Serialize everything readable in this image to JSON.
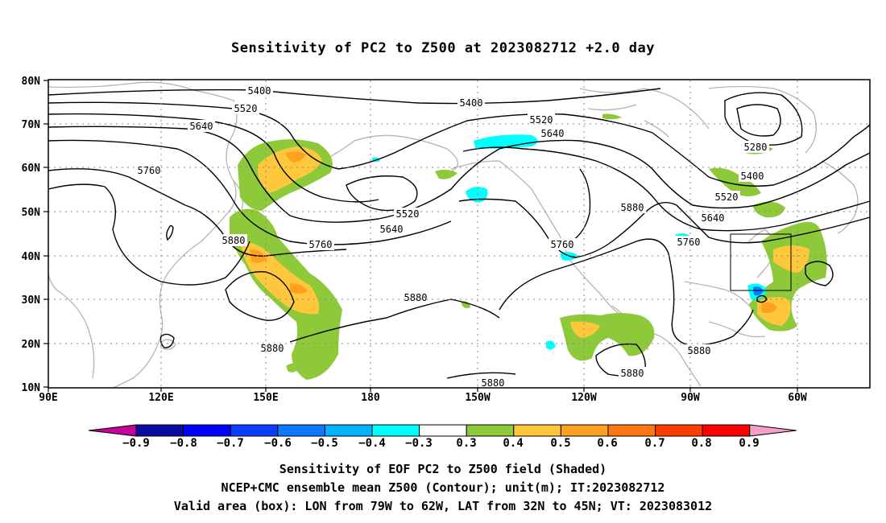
{
  "title": "Sensitivity of PC2 to Z500 at 2023082712 +2.0 day",
  "lat_labels": [
    "80N",
    "70N",
    "60N",
    "50N",
    "40N",
    "30N",
    "20N",
    "10N"
  ],
  "lon_labels": [
    "90E",
    "120E",
    "150E",
    "180",
    "150W",
    "120W",
    "90W",
    "60W"
  ],
  "contour_labels": [
    {
      "text": "5400"
    },
    {
      "text": "5520"
    },
    {
      "text": "5640"
    },
    {
      "text": "5760"
    },
    {
      "text": "5880"
    },
    {
      "text": "5400"
    },
    {
      "text": "5520"
    },
    {
      "text": "5640"
    },
    {
      "text": "5280"
    },
    {
      "text": "5400"
    },
    {
      "text": "5520"
    },
    {
      "text": "5640"
    },
    {
      "text": "5760"
    },
    {
      "text": "5520"
    },
    {
      "text": "5640"
    },
    {
      "text": "5760"
    },
    {
      "text": "5760"
    },
    {
      "text": "5880"
    },
    {
      "text": "5880"
    },
    {
      "text": "5880"
    },
    {
      "text": "5880"
    },
    {
      "text": "5880"
    },
    {
      "text": "5880"
    }
  ],
  "colorbar": {
    "labels": [
      "−0.9",
      "−0.8",
      "−0.7",
      "−0.6",
      "−0.5",
      "−0.4",
      "−0.3",
      "0.3",
      "0.4",
      "0.5",
      "0.6",
      "0.7",
      "0.8",
      "0.9"
    ],
    "colors": [
      "#0a0a9e",
      "#0000ff",
      "#0a3cff",
      "#0a78ff",
      "#00b4ff",
      "#00ffff",
      "#ffffff",
      "#8ec93a",
      "#ffc83c",
      "#ffa01e",
      "#ff7814",
      "#ff3c00",
      "#ff0000"
    ],
    "low_color": "#c8009a",
    "high_color": "#f5a0c8"
  },
  "captions": [
    "Sensitivity of EOF PC2 to Z500 field (Shaded)",
    "NCEP+CMC ensemble mean Z500 (Contour); unit(m); IT:2023082712",
    "Valid area (box): LON from 79W to 62W, LAT from 32N to 45N; VT: 2023083012"
  ]
}
